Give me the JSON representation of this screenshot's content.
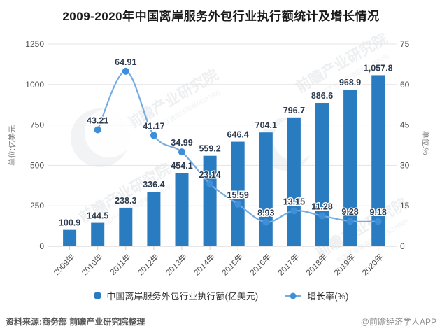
{
  "title": "2009-2020年中国离岸服务外包行业执行额统计及增长情况",
  "chart_data": {
    "type": "bar",
    "subtype": "bar+line combo, dual y-axis",
    "categories": [
      "2009年",
      "2010年",
      "2011年",
      "2012年",
      "2013年",
      "2014年",
      "2015年",
      "2016年",
      "2017年",
      "2018年",
      "2019年",
      "2020年"
    ],
    "series": [
      {
        "name": "中国离岸服务外包行业执行额(亿美元)",
        "type": "bar",
        "axis": "left",
        "values": [
          100.9,
          144.5,
          238.3,
          336.4,
          454.1,
          559.2,
          646.4,
          704.1,
          796.7,
          886.6,
          968.9,
          1057.8
        ],
        "labels": [
          "100.9",
          "144.5",
          "238.3",
          "336.4",
          "454.1",
          "559.2",
          "646.4",
          "704.1",
          "796.7",
          "886.6",
          "968.9",
          "1,057.8"
        ]
      },
      {
        "name": "增长率(%)",
        "type": "line",
        "axis": "right",
        "values": [
          null,
          43.21,
          64.91,
          41.17,
          34.99,
          23.14,
          15.59,
          8.93,
          13.15,
          11.28,
          9.28,
          9.18
        ],
        "labels": [
          null,
          "43.21",
          "64.91",
          "41.17",
          "34.99",
          "23.14",
          "15.59",
          "8.93",
          "13.15",
          "11.28",
          "9.28",
          "9.18"
        ]
      }
    ],
    "left_axis": {
      "title": "单位:亿美元",
      "ticks": [
        0,
        250,
        500,
        750,
        1000,
        1250
      ],
      "min": 0,
      "max": 1250
    },
    "right_axis": {
      "title": "单位:%",
      "ticks": [
        0,
        15,
        30,
        45,
        60,
        75
      ],
      "min": 0,
      "max": 75
    },
    "grid": true,
    "legend_position": "bottom"
  },
  "colors": {
    "bar": "#2a7cc1",
    "line": "#74ace4",
    "marker": "#3f8ed8",
    "data_label": "#2e3a4e",
    "axis_text": "#4d4d4d",
    "axis_title": "#808080",
    "grid": "#e4e4e4",
    "axis_line": "#cfcfcf"
  },
  "legend": {
    "items": [
      {
        "label": "中国离岸服务外包行业执行额(亿美元)",
        "marker": "circle"
      },
      {
        "label": "增长率(%)",
        "marker": "line-dot"
      }
    ]
  },
  "footer": {
    "source": "资料来源:商务部 前瞻产业研究院整理",
    "credit": "@前瞻经济学人APP"
  },
  "watermark": {
    "text": "前瞻产业研究院",
    "subtext": "中国产业咨询领导者(839599)"
  }
}
